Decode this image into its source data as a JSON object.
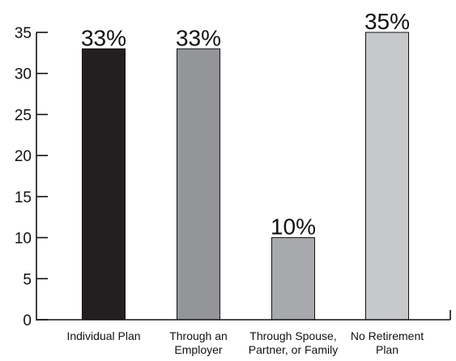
{
  "chart_data": {
    "type": "bar",
    "title": "",
    "xlabel": "",
    "ylabel": "",
    "ylim": [
      0,
      35
    ],
    "yticks": [
      0,
      5,
      10,
      15,
      20,
      25,
      30,
      35
    ],
    "categories": [
      [
        "Individual Plan"
      ],
      [
        "Through an",
        "Employer"
      ],
      [
        "Through Spouse,",
        "Partner, or Family"
      ],
      [
        "No Retirement",
        "Plan"
      ]
    ],
    "values": [
      33,
      33,
      10,
      35
    ],
    "data_labels": [
      "33%",
      "33%",
      "10%",
      "35%"
    ],
    "colors": [
      "#231f20",
      "#939598",
      "#a7a9ac",
      "#c7c8ca"
    ],
    "grid": false,
    "legend": "none"
  }
}
